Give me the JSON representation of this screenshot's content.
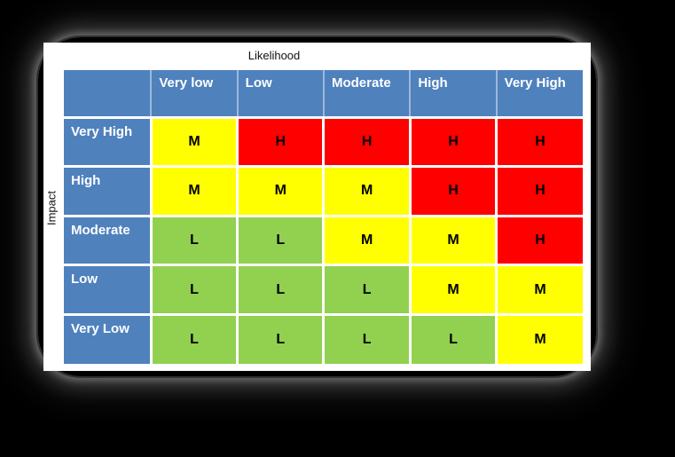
{
  "axis": {
    "x_title": "Likelihood",
    "y_title": "Impact"
  },
  "matrix": {
    "column_headers": [
      "Very low",
      "Low",
      "Moderate",
      "High",
      "Very High"
    ],
    "rows": [
      {
        "label": "Very High",
        "cells": [
          "M",
          "H",
          "H",
          "H",
          "H"
        ]
      },
      {
        "label": "High",
        "cells": [
          "M",
          "M",
          "M",
          "H",
          "H"
        ]
      },
      {
        "label": "Moderate",
        "cells": [
          "L",
          "L",
          "M",
          "M",
          "H"
        ]
      },
      {
        "label": "Low",
        "cells": [
          "L",
          "L",
          "L",
          "M",
          "M"
        ]
      },
      {
        "label": "Very Low",
        "cells": [
          "L",
          "L",
          "L",
          "L",
          "M"
        ]
      }
    ]
  },
  "colors": {
    "page_background": "#000000",
    "card_background": "#ffffff",
    "header_blue": "#4F81BD",
    "risk_low_green": "#92D050",
    "risk_medium_yellow": "#FFFF00",
    "risk_high_red": "#FF0000",
    "gridline_white": "#FFFFFF"
  }
}
